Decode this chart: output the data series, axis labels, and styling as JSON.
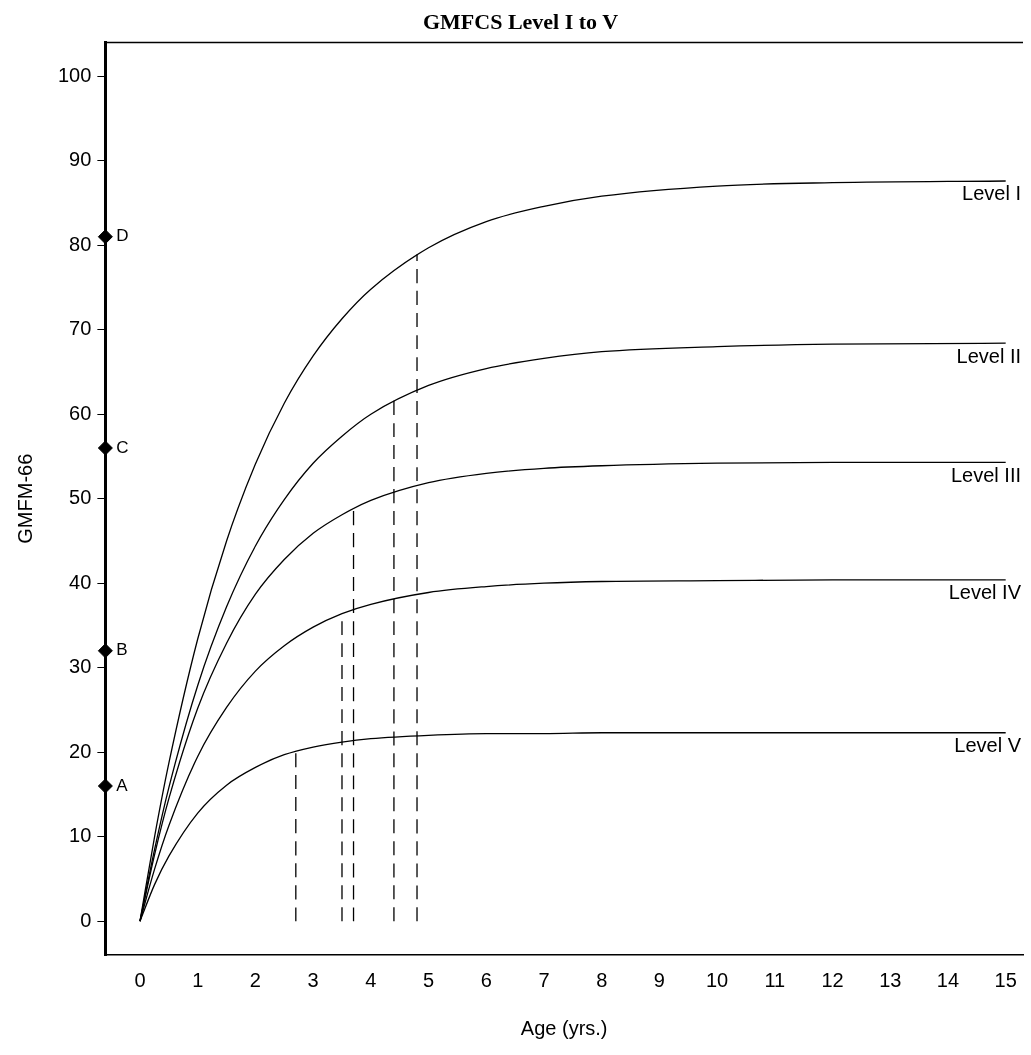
{
  "chart_data": {
    "type": "line",
    "title": "GMFCS Level I to V",
    "xlabel": "Age (yrs.)",
    "ylabel": "GMFM-66",
    "xlim": [
      -0.6,
      15.3
    ],
    "xticks": [
      0,
      1,
      2,
      3,
      4,
      5,
      6,
      7,
      8,
      9,
      10,
      11,
      12,
      13,
      14,
      15
    ],
    "ylim": [
      -4,
      104
    ],
    "yticks": [
      0,
      10,
      20,
      30,
      40,
      50,
      60,
      70,
      80,
      90,
      100
    ],
    "grid": false,
    "marker": "none",
    "line_style": "solid",
    "series": [
      {
        "name": "Level I",
        "color": "#000000",
        "x": [
          0,
          0.25,
          0.5,
          1,
          1.5,
          2,
          2.5,
          3,
          3.5,
          4,
          5,
          6,
          7,
          8,
          10,
          12,
          15
        ],
        "values": [
          0,
          9.9,
          18.7,
          33.4,
          45.0,
          54.1,
          61.3,
          66.9,
          71.3,
          74.8,
          79.7,
          82.8,
          84.6,
          85.8,
          87.0,
          87.4,
          87.6
        ]
      },
      {
        "name": "Level II",
        "color": "#000000",
        "x": [
          0,
          0.25,
          0.5,
          1,
          1.5,
          2,
          2.5,
          3,
          3.5,
          4,
          5,
          6,
          7,
          8,
          10,
          12,
          15
        ],
        "values": [
          0,
          8.4,
          15.8,
          27.9,
          37.2,
          44.4,
          49.9,
          54.2,
          57.4,
          60.0,
          63.4,
          65.4,
          66.6,
          67.4,
          68.0,
          68.3,
          68.4
        ]
      },
      {
        "name": "Level III",
        "color": "#000000",
        "x": [
          0,
          0.25,
          0.5,
          1,
          1.5,
          2,
          2.5,
          3,
          3.5,
          4,
          5,
          6,
          7,
          8,
          10,
          12,
          15
        ],
        "values": [
          0,
          7.8,
          14.5,
          25.2,
          32.9,
          38.7,
          42.8,
          45.9,
          48.1,
          49.8,
          51.9,
          53.0,
          53.6,
          53.9,
          54.2,
          54.3,
          54.3
        ]
      },
      {
        "name": "Level IV",
        "color": "#000000",
        "x": [
          0,
          0.25,
          0.5,
          1,
          1.5,
          2,
          2.5,
          3,
          3.5,
          4,
          5,
          6,
          7,
          8,
          10,
          12,
          15
        ],
        "values": [
          0,
          6.1,
          11.3,
          19.5,
          25.3,
          29.6,
          32.6,
          34.8,
          36.4,
          37.5,
          38.9,
          39.6,
          40.0,
          40.2,
          40.3,
          40.4,
          40.4
        ]
      },
      {
        "name": "Level V",
        "color": "#000000",
        "x": [
          0,
          0.25,
          0.5,
          1,
          1.5,
          2,
          2.5,
          3,
          3.5,
          4,
          5,
          6,
          7,
          8,
          10,
          12,
          15
        ],
        "values": [
          0,
          4.3,
          7.7,
          12.8,
          16.1,
          18.2,
          19.7,
          20.6,
          21.2,
          21.6,
          22.0,
          22.2,
          22.2,
          22.3,
          22.3,
          22.3,
          22.3
        ]
      },
      {
        "color": "#000000",
        "line_style": "dashed",
        "x": [
          4.8,
          4.8
        ],
        "values": [
          0,
          78.9
        ]
      },
      {
        "color": "#000000",
        "line_style": "dashed",
        "x": [
          4.4,
          4.4
        ],
        "values": [
          0,
          61.6
        ]
      },
      {
        "color": "#000000",
        "line_style": "dashed",
        "x": [
          3.7,
          3.7
        ],
        "values": [
          0,
          48.9
        ]
      },
      {
        "color": "#000000",
        "line_style": "dashed",
        "x": [
          3.5,
          3.5
        ],
        "values": [
          0,
          36.4
        ]
      },
      {
        "color": "#000000",
        "line_style": "dashed",
        "x": [
          2.7,
          2.7
        ],
        "values": [
          0,
          20.1
        ]
      },
      {
        "type": "scatter",
        "color": "#000000",
        "marker": "diamond",
        "x": [
          -0.6,
          -0.6,
          -0.6,
          -0.6
        ],
        "values": [
          16,
          32,
          56,
          81
        ],
        "value_labels": [
          "A",
          "B",
          "C",
          "D"
        ]
      }
    ]
  }
}
